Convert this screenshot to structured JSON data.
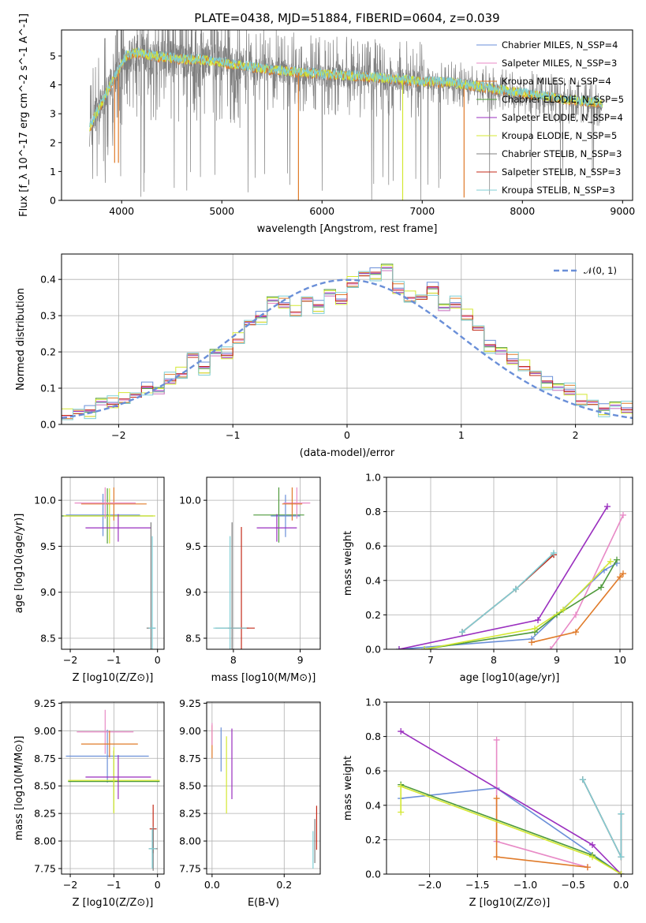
{
  "figure_title": "PLATE=0438, MJD=51884, FIBERID=0604, z=0.039",
  "colors": [
    "#6a8fd8",
    "#e88ac6",
    "#e07b2a",
    "#4f9a3c",
    "#9a2fbf",
    "#d4e832",
    "#7f7f7f",
    "#c42b1a",
    "#7fcfd6"
  ],
  "model_names": [
    "Chabrier MILES, N_SSP=4",
    "Salpeter MILES, N_SSP=3",
    "Kroupa MILES, N_SSP=4",
    "Chabrier ELODIE, N_SSP=5",
    "Salpeter ELODIE, N_SSP=4",
    "Kroupa ELODIE, N_SSP=5",
    "Chabrier STELIB, N_SSP=3",
    "Salpeter STELIB, N_SSP=3",
    "Kroupa STELIB, N_SSP=3"
  ],
  "chart_data": [
    {
      "id": "spectrum",
      "type": "line",
      "title": "PLATE=0438, MJD=51884, FIBERID=0604, z=0.039",
      "xlabel": "wavelength [Angstrom, rest frame]",
      "ylabel": "Flux [f_λ 10^-17 erg cm^-2 s^-1 A^-1]",
      "xlim": [
        3400,
        9100
      ],
      "ylim": [
        0,
        5.9
      ],
      "xticks": [
        4000,
        5000,
        6000,
        7000,
        8000,
        9000
      ],
      "yticks": [
        0,
        1,
        2,
        3,
        4,
        5
      ],
      "data_wavelength_range": [
        3680,
        8800
      ],
      "legend": [
        "Chabrier MILES, N_SSP=4",
        "Salpeter MILES, N_SSP=3",
        "Kroupa MILES, N_SSP=4",
        "Chabrier ELODIE, N_SSP=5",
        "Salpeter ELODIE, N_SSP=4",
        "Kroupa ELODIE, N_SSP=5",
        "Chabrier STELIB, N_SSP=3",
        "Salpeter STELIB, N_SSP=3",
        "Kroupa STELIB, N_SSP=3"
      ],
      "legend_position": "top-right",
      "model_continuum": {
        "x": [
          3680,
          3750,
          3850,
          3950,
          4050,
          4150,
          4300,
          4500,
          4800,
          5100,
          5500,
          6000,
          6500,
          7000,
          7300,
          7500,
          7800,
          8200,
          8500,
          8800
        ],
        "y": [
          2.5,
          3.0,
          3.7,
          4.4,
          5.0,
          5.1,
          5.0,
          4.9,
          4.85,
          4.7,
          4.5,
          4.35,
          4.25,
          4.1,
          4.05,
          3.95,
          3.8,
          3.6,
          3.45,
          3.35
        ]
      },
      "model_low_features": {
        "x": [
          3930,
          3968,
          5765,
          6805,
          7418
        ],
        "y": [
          1.3,
          1.3,
          0.0,
          0.0,
          0.1
        ]
      }
    },
    {
      "id": "residuals",
      "type": "line",
      "xlabel": "(data-model)/error",
      "ylabel": "Normed distribution",
      "xlim": [
        -2.5,
        2.5
      ],
      "ylim": [
        0,
        0.47
      ],
      "xticks": [
        -2,
        -1,
        0,
        1,
        2
      ],
      "yticks": [
        0.0,
        0.1,
        0.2,
        0.3,
        0.4
      ],
      "legend": [
        "𝒩(0, 1)"
      ],
      "legend_position": "top-right",
      "bin_width": 0.1,
      "bin_starts": [
        -2.5,
        -2.4,
        -2.3,
        -2.2,
        -2.1,
        -2.0,
        -1.9,
        -1.8,
        -1.7,
        -1.6,
        -1.5,
        -1.4,
        -1.3,
        -1.2,
        -1.1,
        -1.0,
        -0.9,
        -0.8,
        -0.7,
        -0.6,
        -0.5,
        -0.4,
        -0.3,
        -0.2,
        -0.1,
        0.0,
        0.1,
        0.2,
        0.3,
        0.4,
        0.5,
        0.6,
        0.7,
        0.8,
        0.9,
        1.0,
        1.1,
        1.2,
        1.3,
        1.4,
        1.5,
        1.6,
        1.7,
        1.8,
        1.9,
        2.0,
        2.1,
        2.2,
        2.3,
        2.4
      ],
      "histogram_values": [
        0.025,
        0.03,
        0.04,
        0.06,
        0.055,
        0.07,
        0.075,
        0.105,
        0.09,
        0.12,
        0.14,
        0.185,
        0.16,
        0.195,
        0.19,
        0.235,
        0.275,
        0.3,
        0.34,
        0.33,
        0.31,
        0.34,
        0.33,
        0.36,
        0.34,
        0.39,
        0.41,
        0.42,
        0.43,
        0.37,
        0.35,
        0.345,
        0.38,
        0.32,
        0.33,
        0.3,
        0.26,
        0.22,
        0.2,
        0.175,
        0.16,
        0.135,
        0.12,
        0.1,
        0.09,
        0.065,
        0.055,
        0.045,
        0.05,
        0.04
      ]
    },
    {
      "id": "age-vs-Z",
      "type": "scatter",
      "xlabel": "Z [log10(Z/Z⊙)]",
      "ylabel": "age [log10(age/yr)]",
      "xlim": [
        -2.2,
        0.15
      ],
      "ylim": [
        8.38,
        10.25
      ],
      "xticks": [
        -2,
        -1,
        0
      ],
      "yticks": [
        8.5,
        9.0,
        9.5,
        10.0
      ],
      "points": [
        {
          "series": 0,
          "x": -1.25,
          "y": 9.84,
          "xerr": 0.85,
          "yerr": 0.23
        },
        {
          "series": 3,
          "x": -1.15,
          "y": 9.83,
          "xerr": 1.05,
          "yerr": 0.3
        },
        {
          "series": 5,
          "x": -1.1,
          "y": 9.83,
          "xerr": 1.05,
          "yerr": 0.3
        },
        {
          "series": 2,
          "x": -1.0,
          "y": 9.96,
          "xerr": 0.75,
          "yerr": 0.18
        },
        {
          "series": 1,
          "x": -1.2,
          "y": 9.97,
          "xerr": 0.7,
          "yerr": 0.17
        },
        {
          "series": 4,
          "x": -0.9,
          "y": 9.7,
          "xerr": 0.75,
          "yerr": 0.15
        },
        {
          "series": 6,
          "x": -0.15,
          "y": 8.61,
          "xerr": 0.1,
          "yerr": 1.15
        },
        {
          "series": 8,
          "x": -0.12,
          "y": 8.61,
          "xerr": 0.08,
          "yerr": 1.0
        }
      ]
    },
    {
      "id": "age-vs-mass",
      "type": "scatter",
      "xlabel": "mass [log10(M/M⊙)]",
      "ylabel": "",
      "xlim": [
        7.6,
        9.3
      ],
      "ylim": [
        8.38,
        10.25
      ],
      "xticks": [
        8,
        9
      ],
      "yticks": [
        8.5,
        9.0,
        9.5,
        10.0
      ],
      "points": [
        {
          "series": 3,
          "x": 8.68,
          "y": 9.84,
          "xerr": 0.38,
          "yerr": 0.3
        },
        {
          "series": 0,
          "x": 8.78,
          "y": 9.83,
          "xerr": 0.22,
          "yerr": 0.23
        },
        {
          "series": 1,
          "x": 8.95,
          "y": 9.97,
          "xerr": 0.2,
          "yerr": 0.17
        },
        {
          "series": 2,
          "x": 8.88,
          "y": 9.96,
          "xerr": 0.15,
          "yerr": 0.18
        },
        {
          "series": 4,
          "x": 8.65,
          "y": 9.7,
          "xerr": 0.3,
          "yerr": 0.15
        },
        {
          "series": 6,
          "x": 7.98,
          "y": 8.61,
          "xerr": 0.25,
          "yerr": 1.15
        },
        {
          "series": 7,
          "x": 8.12,
          "y": 8.61,
          "xerr": 0.2,
          "yerr": 1.1
        },
        {
          "series": 8,
          "x": 7.95,
          "y": 8.61,
          "xerr": 0.25,
          "yerr": 1.0
        }
      ]
    },
    {
      "id": "mass-weight-vs-age",
      "type": "line",
      "xlabel": "age [log10(age/yr)]",
      "ylabel": "mass weight",
      "xlim": [
        6.3,
        10.2
      ],
      "ylim": [
        0,
        1.0
      ],
      "xticks": [
        7,
        8,
        9,
        10
      ],
      "yticks": [
        0.0,
        0.2,
        0.4,
        0.6,
        0.8,
        1.0
      ],
      "series": [
        {
          "x": [
            6.5,
            8.6,
            9.75,
            9.95
          ],
          "y": [
            0.0,
            0.06,
            0.46,
            0.5
          ]
        },
        {
          "x": [
            8.9,
            9.3,
            10.05
          ],
          "y": [
            0.0,
            0.2,
            0.78
          ]
        },
        {
          "x": [
            8.6,
            9.3,
            10.0,
            10.05
          ],
          "y": [
            0.04,
            0.1,
            0.42,
            0.44
          ]
        },
        {
          "x": [
            6.9,
            8.65,
            9.0,
            9.7,
            9.95
          ],
          "y": [
            0.0,
            0.1,
            0.2,
            0.36,
            0.52
          ]
        },
        {
          "x": [
            6.5,
            8.7,
            9.8
          ],
          "y": [
            0.0,
            0.17,
            0.83
          ]
        },
        {
          "x": [
            6.9,
            8.65,
            9.1,
            9.85
          ],
          "y": [
            0.0,
            0.12,
            0.23,
            0.51
          ]
        },
        {
          "x": [
            7.5,
            8.35,
            8.95
          ],
          "y": [
            0.1,
            0.35,
            0.55
          ]
        },
        {
          "x": [
            7.5,
            8.35,
            8.95
          ],
          "y": [
            0.1,
            0.35,
            0.55
          ]
        },
        {
          "x": [
            7.5,
            8.35,
            8.95
          ],
          "y": [
            0.1,
            0.35,
            0.56
          ]
        }
      ]
    },
    {
      "id": "mass-vs-Z",
      "type": "scatter",
      "xlabel": "Z [log10(Z/Z⊙)]",
      "ylabel": "mass [log10(M/M⊙)]",
      "xlim": [
        -2.2,
        0.15
      ],
      "ylim": [
        7.7,
        9.26
      ],
      "xticks": [
        -2,
        -1,
        0
      ],
      "yticks": [
        7.75,
        8.0,
        8.25,
        8.5,
        8.75,
        9.0,
        9.25
      ],
      "points": [
        {
          "series": 0,
          "x": -1.15,
          "y": 8.77,
          "xerr": 0.95,
          "yerr": 0.24
        },
        {
          "series": 3,
          "x": -1.0,
          "y": 8.54,
          "xerr": 1.05,
          "yerr": 0.28
        },
        {
          "series": 5,
          "x": -1.0,
          "y": 8.55,
          "xerr": 1.05,
          "yerr": 0.3
        },
        {
          "series": 1,
          "x": -1.2,
          "y": 8.99,
          "xerr": 0.65,
          "yerr": 0.2
        },
        {
          "series": 2,
          "x": -1.1,
          "y": 8.88,
          "xerr": 0.65,
          "yerr": 0.12
        },
        {
          "series": 4,
          "x": -0.9,
          "y": 8.58,
          "xerr": 0.75,
          "yerr": 0.2
        },
        {
          "series": 7,
          "x": -0.1,
          "y": 8.11,
          "xerr": 0.08,
          "yerr": 0.22
        },
        {
          "series": 6,
          "x": -0.1,
          "y": 7.93,
          "xerr": 0.1,
          "yerr": 0.2
        },
        {
          "series": 8,
          "x": -0.12,
          "y": 7.93,
          "xerr": 0.08,
          "yerr": 0.18
        }
      ]
    },
    {
      "id": "mass-vs-EBV",
      "type": "scatter",
      "xlabel": "E(B-V)",
      "ylabel": "",
      "xlim": [
        -0.015,
        0.3
      ],
      "ylim": [
        7.7,
        9.26
      ],
      "xticks": [
        0.0,
        0.2
      ],
      "yticks": [
        7.75,
        8.0,
        8.25,
        8.5,
        8.75,
        9.0,
        9.25
      ],
      "points": [
        {
          "series": 2,
          "x": 0.0,
          "y": 8.9,
          "yerr": 0.15
        },
        {
          "series": 1,
          "x": 0.0,
          "y": 8.97,
          "yerr": 0.1
        },
        {
          "series": 0,
          "x": 0.025,
          "y": 8.83,
          "yerr": 0.2
        },
        {
          "series": 5,
          "x": 0.04,
          "y": 8.6,
          "yerr": 0.35
        },
        {
          "series": 4,
          "x": 0.055,
          "y": 8.7,
          "yerr": 0.32
        },
        {
          "series": 7,
          "x": 0.29,
          "y": 8.12,
          "yerr": 0.2
        },
        {
          "series": 6,
          "x": 0.285,
          "y": 8.0,
          "yerr": 0.2
        },
        {
          "series": 8,
          "x": 0.28,
          "y": 7.92,
          "yerr": 0.17
        }
      ]
    },
    {
      "id": "mass-weight-vs-Z",
      "type": "line",
      "xlabel": "Z [log10(Z/Z⊙)]",
      "ylabel": "mass weight",
      "xlim": [
        -2.45,
        0.12
      ],
      "ylim": [
        0,
        1.0
      ],
      "xticks": [
        -2.0,
        -1.5,
        -1.0,
        -0.5,
        0.0
      ],
      "yticks": [
        0.0,
        0.2,
        0.4,
        0.6,
        0.8,
        1.0
      ],
      "series": [
        {
          "x": [
            -2.3,
            -1.3,
            0.0
          ],
          "y": [
            0.44,
            0.5,
            0.0
          ]
        },
        {
          "x": [
            -1.3,
            -1.3,
            -0.35
          ],
          "y": [
            0.78,
            0.19,
            0.04
          ]
        },
        {
          "x": [
            -1.3,
            -1.3,
            -0.35
          ],
          "y": [
            0.44,
            0.1,
            0.04
          ]
        },
        {
          "x": [
            -2.3,
            -0.3,
            0.0
          ],
          "y": [
            0.52,
            0.11,
            0.0
          ]
        },
        {
          "x": [
            -2.3,
            -0.3,
            0.0
          ],
          "y": [
            0.83,
            0.17,
            0.0
          ]
        },
        {
          "x": [
            -2.3,
            -2.3,
            -0.3,
            0.0
          ],
          "y": [
            0.36,
            0.51,
            0.1,
            0.0
          ]
        },
        {
          "x": [
            -0.4,
            0.0,
            0.0
          ],
          "y": [
            0.55,
            0.1,
            0.35
          ]
        },
        {
          "x": [
            -0.4,
            0.0,
            0.0
          ],
          "y": [
            0.55,
            0.1,
            0.35
          ]
        },
        {
          "x": [
            -0.4,
            0.0,
            0.0
          ],
          "y": [
            0.55,
            0.1,
            0.35
          ]
        }
      ]
    }
  ]
}
